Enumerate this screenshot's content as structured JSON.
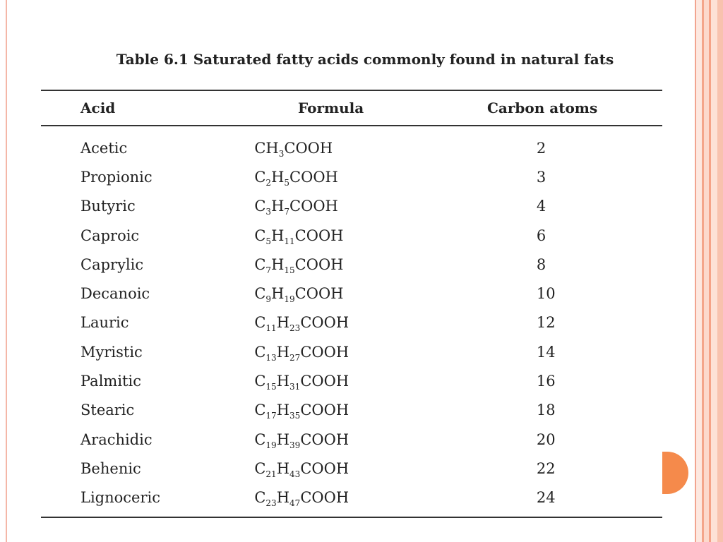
{
  "title": "Table 6.1 Saturated fatty acids commonly found in natural fats",
  "headers": {
    "acid": "Acid",
    "formula": "Formula",
    "carbon": "Carbon atoms"
  },
  "rows": [
    {
      "acid": "Acetic",
      "formula": [
        [
          "C",
          "H"
        ],
        [
          "3",
          ""
        ],
        "COOH"
      ],
      "carbon": "2"
    },
    {
      "acid": "Propionic",
      "carbon": "3"
    },
    {
      "acid": "Butyric",
      "carbon": "4"
    },
    {
      "acid": "Caproic",
      "carbon": "6"
    },
    {
      "acid": "Caprylic",
      "carbon": "8"
    },
    {
      "acid": "Decanoic",
      "carbon": "10"
    },
    {
      "acid": "Lauric",
      "carbon": "12"
    },
    {
      "acid": "Myristic",
      "carbon": "14"
    },
    {
      "acid": "Palmitic",
      "carbon": "16"
    },
    {
      "acid": "Stearic",
      "carbon": "18"
    },
    {
      "acid": "Arachidic",
      "carbon": "20"
    },
    {
      "acid": "Behenic",
      "carbon": "22"
    },
    {
      "acid": "Lignoceric",
      "carbon": "24"
    }
  ],
  "formulas": [
    {
      "c": "",
      "h": "3",
      "text": "CH",
      "suffix": "COOH"
    },
    {
      "c": "2",
      "h": "5",
      "suffix": "COOH"
    },
    {
      "c": "3",
      "h": "7",
      "suffix": "COOH"
    },
    {
      "c": "5",
      "h": "11",
      "suffix": "COOH"
    },
    {
      "c": "7",
      "h": "15",
      "suffix": "COOH"
    },
    {
      "c": "9",
      "h": "19",
      "suffix": "COOH"
    },
    {
      "c": "11",
      "h": "23",
      "suffix": "COOH"
    },
    {
      "c": "13",
      "h": "27",
      "suffix": "COOH"
    },
    {
      "c": "15",
      "h": "31",
      "suffix": "COOH"
    },
    {
      "c": "17",
      "h": "35",
      "suffix": "COOH"
    },
    {
      "c": "19",
      "h": "39",
      "suffix": "COOH"
    },
    {
      "c": "21",
      "h": "43",
      "suffix": "COOH"
    },
    {
      "c": "23",
      "h": "47",
      "suffix": "COOH"
    }
  ],
  "colors": {
    "accent": "#f58a4b",
    "border_stripe": "#f4b7a8",
    "text": "#222222"
  }
}
